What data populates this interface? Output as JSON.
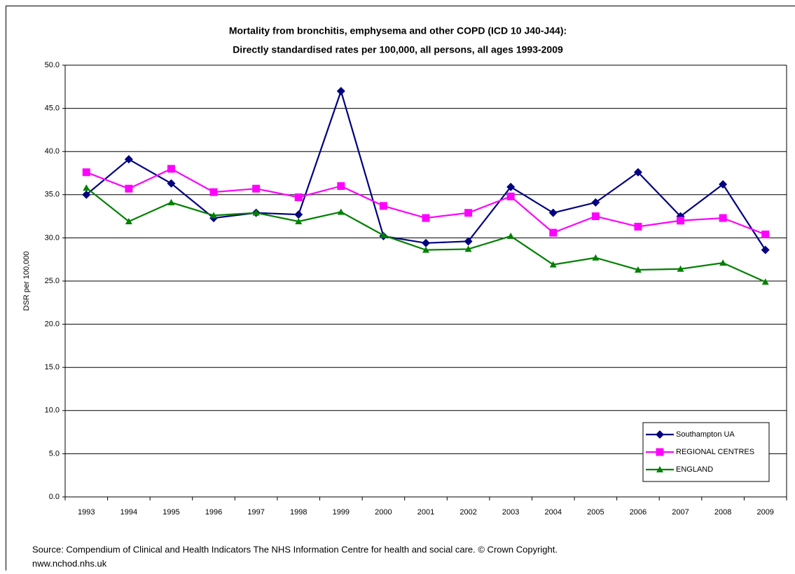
{
  "chart_data": {
    "type": "line",
    "title_lines": [
      "Mortality from bronchitis, emphysema and other COPD (ICD 10 J40-J44):",
      "Directly standardised rates per 100,000, all persons, all ages 1993-2009"
    ],
    "y_label": "DSR per 100,000",
    "source_lines": [
      "Source: Compendium of Clinical and Health Indicators The NHS Information Centre for health and social care. © Crown Copyright.",
      "nww.nchod.nhs.uk"
    ],
    "categories": [
      "1993",
      "1994",
      "1995",
      "1996",
      "1997",
      "1998",
      "1999",
      "2000",
      "2001",
      "2002",
      "2003",
      "2004",
      "2005",
      "2006",
      "2007",
      "2008",
      "2009"
    ],
    "series": [
      {
        "name": "Southampton UA",
        "color": "#000080",
        "marker": "diamond",
        "values": [
          35.0,
          39.1,
          36.3,
          32.3,
          32.9,
          32.7,
          47.0,
          30.2,
          29.4,
          29.6,
          35.9,
          32.9,
          34.1,
          37.6,
          32.5,
          36.2,
          28.6
        ]
      },
      {
        "name": "REGIONAL CENTRES",
        "color": "#ff00ff",
        "marker": "square",
        "values": [
          37.6,
          35.7,
          38.0,
          35.3,
          35.7,
          34.7,
          36.0,
          33.7,
          32.3,
          32.9,
          34.8,
          30.6,
          32.5,
          31.3,
          32.0,
          32.3,
          30.4
        ]
      },
      {
        "name": "ENGLAND",
        "color": "#008000",
        "marker": "triangle",
        "values": [
          35.8,
          31.9,
          34.1,
          32.6,
          32.9,
          31.9,
          33.0,
          30.3,
          28.6,
          28.7,
          30.2,
          26.9,
          27.7,
          26.3,
          26.4,
          27.1,
          24.9
        ]
      }
    ],
    "ylim": [
      0,
      50
    ],
    "yticks": [
      {
        "value": 0,
        "label": "0.0"
      },
      {
        "value": 5,
        "label": "5.0"
      },
      {
        "value": 10,
        "label": "10.0"
      },
      {
        "value": 15,
        "label": "15.0"
      },
      {
        "value": 20,
        "label": "20.0"
      },
      {
        "value": 25,
        "label": "25.0"
      },
      {
        "value": 30,
        "label": "30.0"
      },
      {
        "value": 35,
        "label": "35.0"
      },
      {
        "value": 40,
        "label": "40.0"
      },
      {
        "value": 45,
        "label": "45.0"
      },
      {
        "value": 50,
        "label": "50.0"
      }
    ],
    "grid": true,
    "legend": "lower right"
  }
}
